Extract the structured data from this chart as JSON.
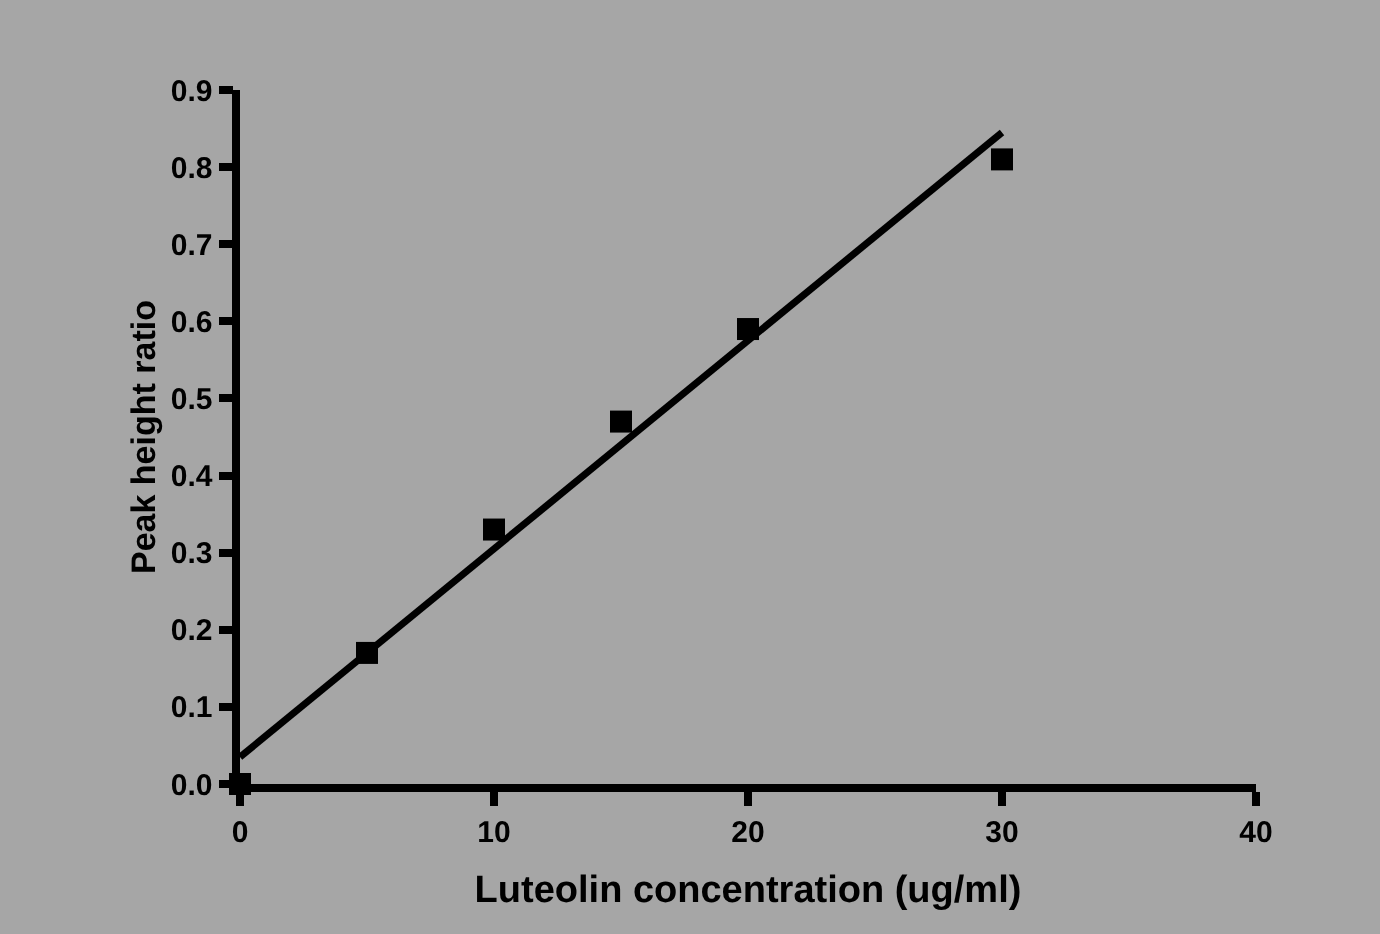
{
  "chart_data": {
    "type": "scatter",
    "xlabel": "Luteolin concentration (ug/ml)",
    "ylabel": "Peak height ratio",
    "x": [
      0,
      5,
      10,
      15,
      20,
      30
    ],
    "series": [
      {
        "color": "#000000",
        "values": [
          0.0,
          0.17,
          0.33,
          0.47,
          0.59,
          0.81
        ],
        "marker": "square"
      },
      {
        "type": "line",
        "color": "#000000",
        "x": [
          0,
          30
        ],
        "values": [
          0.035,
          0.845
        ],
        "marker": "none",
        "line_style": "solid"
      }
    ],
    "xlim": [
      0,
      40
    ],
    "xticks": [
      0,
      10,
      20,
      30,
      40
    ],
    "ylim": [
      0,
      0.9
    ],
    "yticks": [
      {
        "value": 0,
        "label": "0.0"
      },
      0.1,
      0.2,
      0.3,
      0.4,
      0.5,
      0.6,
      0.7,
      0.8,
      0.9
    ],
    "grid": false,
    "legend": false
  }
}
